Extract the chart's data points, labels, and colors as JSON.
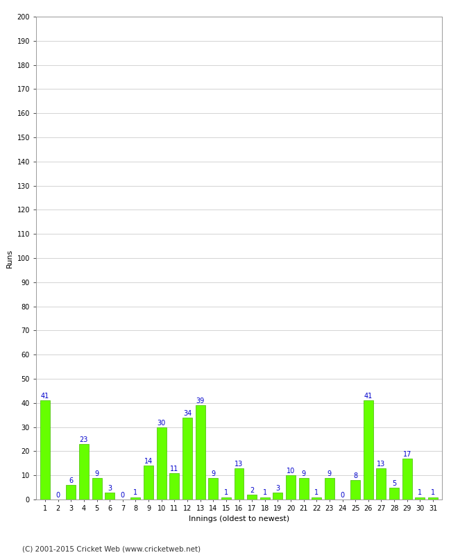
{
  "xlabel": "Innings (oldest to newest)",
  "ylabel": "Runs",
  "values": [
    41,
    0,
    6,
    23,
    9,
    3,
    0,
    1,
    14,
    30,
    11,
    34,
    39,
    9,
    1,
    13,
    2,
    1,
    3,
    10,
    9,
    1,
    9,
    0,
    8,
    41,
    13,
    5,
    17,
    1,
    1
  ],
  "labels": [
    1,
    2,
    3,
    4,
    5,
    6,
    7,
    8,
    9,
    10,
    11,
    12,
    13,
    14,
    15,
    16,
    17,
    18,
    19,
    20,
    21,
    22,
    23,
    24,
    25,
    26,
    27,
    28,
    29,
    30,
    31
  ],
  "bar_color": "#66ff00",
  "bar_edge_color": "#44bb00",
  "label_color": "#0000cc",
  "ylim": [
    0,
    200
  ],
  "yticks": [
    0,
    10,
    20,
    30,
    40,
    50,
    60,
    70,
    80,
    90,
    100,
    110,
    120,
    130,
    140,
    150,
    160,
    170,
    180,
    190,
    200
  ],
  "background_color": "#ffffff",
  "grid_color": "#cccccc",
  "footer": "(C) 2001-2015 Cricket Web (www.cricketweb.net)",
  "ylabel_fontsize": 8,
  "xlabel_fontsize": 8,
  "tick_fontsize": 7,
  "bar_label_fontsize": 7,
  "footer_fontsize": 7.5
}
